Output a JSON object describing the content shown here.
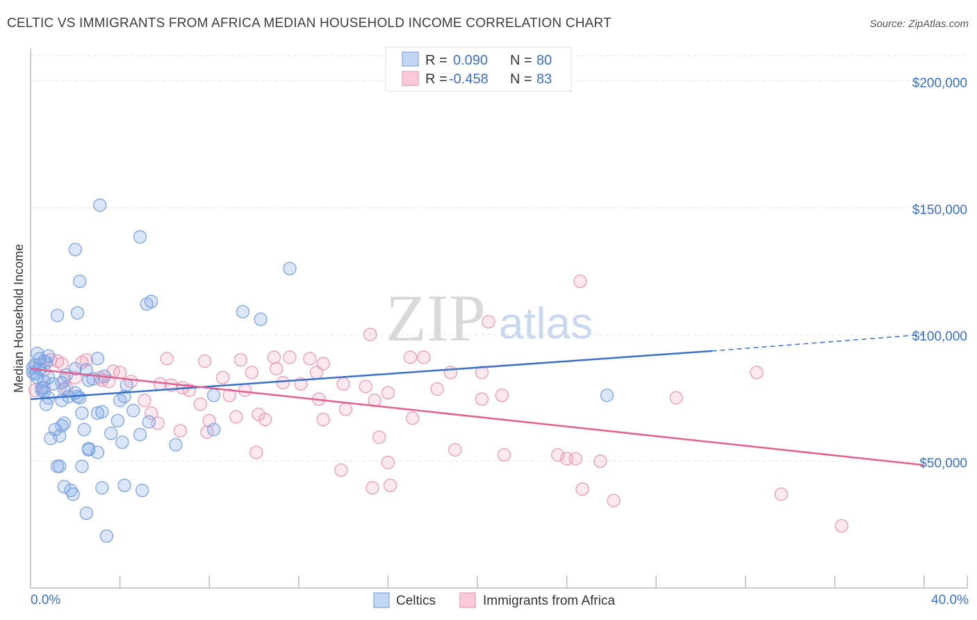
{
  "title": "CELTIC VS IMMIGRANTS FROM AFRICA MEDIAN HOUSEHOLD INCOME CORRELATION CHART",
  "source": "Source: ZipAtlas.com",
  "watermark": {
    "part1": "ZIP",
    "part2": "atlas"
  },
  "colors": {
    "blue": "#3a70c8",
    "blue_fill": "rgba(110,160,230,0.25)",
    "blue_stroke": "#7ba4e0",
    "pink": "#e0608f",
    "pink_fill": "rgba(240,150,180,0.22)",
    "pink_stroke": "#eb9ab7",
    "grid": "#e4e4e4"
  },
  "legend": {
    "rows": [
      {
        "r_label": "R =",
        "r_value": "0.090",
        "n_label": "N =",
        "n_value": "80"
      },
      {
        "r_label": "R =",
        "r_value": "-0.458",
        "n_label": "N =",
        "n_value": "83"
      }
    ]
  },
  "bottom_legend": [
    "Celtics",
    "Immigrants from Africa"
  ],
  "chart_data": {
    "type": "scatter",
    "title": "CELTIC VS IMMIGRANTS FROM AFRICA MEDIAN HOUSEHOLD INCOME CORRELATION CHART",
    "xlabel": "",
    "ylabel": "Median Household Income",
    "xlim": [
      0,
      40
    ],
    "ylim": [
      0,
      210000
    ],
    "x_tick_labels": [
      "0.0%",
      "40.0%"
    ],
    "y_ticks": [
      50000,
      100000,
      150000,
      200000
    ],
    "y_tick_labels": [
      "$50,000",
      "$100,000",
      "$150,000",
      "$200,000"
    ],
    "grid": true,
    "legend_position": "top-center",
    "series": [
      {
        "name": "Celtics",
        "r": 0.09,
        "n": 80,
        "trend": {
          "x0": 0.0,
          "y0": 74500,
          "x1": 30.5,
          "y1": 93500,
          "dashed_to_x": 40.0,
          "dashed_to_y": 100000
        },
        "points": [
          [
            3.1,
            151000
          ],
          [
            4.9,
            138500
          ],
          [
            2.0,
            133500
          ],
          [
            11.6,
            126000
          ],
          [
            2.2,
            121000
          ],
          [
            5.4,
            113000
          ],
          [
            5.2,
            112000
          ],
          [
            9.5,
            109000
          ],
          [
            2.1,
            108500
          ],
          [
            1.2,
            107500
          ],
          [
            10.3,
            106000
          ],
          [
            0.3,
            92500
          ],
          [
            0.8,
            91500
          ],
          [
            0.4,
            90500
          ],
          [
            3.0,
            90500
          ],
          [
            0.6,
            89500
          ],
          [
            0.7,
            89000
          ],
          [
            0.2,
            88000
          ],
          [
            0.1,
            87000
          ],
          [
            0.4,
            86500
          ],
          [
            2.5,
            86000
          ],
          [
            0.1,
            85000
          ],
          [
            0.2,
            84500
          ],
          [
            1.6,
            84000
          ],
          [
            0.8,
            83000
          ],
          [
            2.8,
            82500
          ],
          [
            2.6,
            82000
          ],
          [
            0.6,
            81500
          ],
          [
            1.4,
            81000
          ],
          [
            4.3,
            80000
          ],
          [
            0.5,
            79000
          ],
          [
            1.5,
            78500
          ],
          [
            0.5,
            78000
          ],
          [
            2.0,
            77000
          ],
          [
            8.2,
            76000
          ],
          [
            4.2,
            75500
          ],
          [
            25.8,
            76000
          ],
          [
            1.7,
            75500
          ],
          [
            2.1,
            75500
          ],
          [
            0.8,
            75000
          ],
          [
            2.2,
            75000
          ],
          [
            1.4,
            74000
          ],
          [
            4.0,
            74000
          ],
          [
            0.7,
            72500
          ],
          [
            4.6,
            70000
          ],
          [
            3.2,
            69500
          ],
          [
            2.3,
            69000
          ],
          [
            3.0,
            69000
          ],
          [
            3.9,
            66000
          ],
          [
            1.5,
            65000
          ],
          [
            5.3,
            65500
          ],
          [
            1.4,
            64000
          ],
          [
            1.1,
            62500
          ],
          [
            2.4,
            62500
          ],
          [
            8.2,
            62500
          ],
          [
            3.6,
            61000
          ],
          [
            4.9,
            60500
          ],
          [
            1.3,
            60000
          ],
          [
            0.9,
            59000
          ],
          [
            4.1,
            57500
          ],
          [
            6.5,
            56500
          ],
          [
            2.6,
            55000
          ],
          [
            3.0,
            53500
          ],
          [
            2.6,
            54500
          ],
          [
            1.2,
            48000
          ],
          [
            1.3,
            48000
          ],
          [
            2.3,
            48000
          ],
          [
            1.5,
            40000
          ],
          [
            3.2,
            39500
          ],
          [
            4.2,
            40500
          ],
          [
            1.8,
            38500
          ],
          [
            5.0,
            38500
          ],
          [
            1.9,
            37000
          ],
          [
            2.5,
            29500
          ],
          [
            3.4,
            20500
          ],
          [
            0.3,
            83000
          ],
          [
            0.6,
            77500
          ],
          [
            1.0,
            80500
          ],
          [
            2.0,
            86500
          ],
          [
            3.3,
            83500
          ]
        ]
      },
      {
        "name": "Immigrants from Africa",
        "r": -0.458,
        "n": 83,
        "trend": {
          "x0": 0.0,
          "y0": 86500,
          "x1": 40.0,
          "y1": 48500
        },
        "points": [
          [
            24.6,
            121000
          ],
          [
            20.5,
            105000
          ],
          [
            15.2,
            100000
          ],
          [
            6.1,
            90500
          ],
          [
            10.9,
            91000
          ],
          [
            11.6,
            91000
          ],
          [
            12.5,
            90500
          ],
          [
            17.0,
            91000
          ],
          [
            17.6,
            91000
          ],
          [
            7.8,
            89500
          ],
          [
            9.4,
            90000
          ],
          [
            13.1,
            88500
          ],
          [
            2.3,
            89000
          ],
          [
            2.5,
            90000
          ],
          [
            1.2,
            89500
          ],
          [
            0.9,
            90000
          ],
          [
            1.4,
            88500
          ],
          [
            0.4,
            88000
          ],
          [
            11.0,
            86500
          ],
          [
            0.6,
            86000
          ],
          [
            3.7,
            85500
          ],
          [
            4.0,
            85000
          ],
          [
            12.8,
            85000
          ],
          [
            18.8,
            85000
          ],
          [
            20.2,
            85000
          ],
          [
            32.5,
            85000
          ],
          [
            8.6,
            83000
          ],
          [
            2.0,
            83000
          ],
          [
            3.2,
            82000
          ],
          [
            3.5,
            81500
          ],
          [
            4.5,
            81500
          ],
          [
            12.1,
            80500
          ],
          [
            14.0,
            80500
          ],
          [
            5.8,
            80500
          ],
          [
            6.3,
            80000
          ],
          [
            6.8,
            79000
          ],
          [
            7.1,
            78000
          ],
          [
            0.6,
            79000
          ],
          [
            1.6,
            79000
          ],
          [
            9.6,
            78000
          ],
          [
            15.0,
            79500
          ],
          [
            18.2,
            78500
          ],
          [
            16.0,
            77000
          ],
          [
            8.9,
            76000
          ],
          [
            21.1,
            76000
          ],
          [
            20.2,
            74500
          ],
          [
            12.9,
            74500
          ],
          [
            28.9,
            75000
          ],
          [
            15.4,
            74000
          ],
          [
            5.1,
            74000
          ],
          [
            0.2,
            78000
          ],
          [
            7.6,
            72500
          ],
          [
            14.1,
            70500
          ],
          [
            5.4,
            69000
          ],
          [
            10.2,
            68500
          ],
          [
            9.2,
            67500
          ],
          [
            13.1,
            66500
          ],
          [
            10.5,
            66500
          ],
          [
            8.0,
            66000
          ],
          [
            17.1,
            67000
          ],
          [
            5.7,
            65000
          ],
          [
            6.7,
            62000
          ],
          [
            7.9,
            61500
          ],
          [
            15.6,
            59500
          ],
          [
            19.0,
            54500
          ],
          [
            10.1,
            53500
          ],
          [
            21.2,
            52500
          ],
          [
            23.6,
            52500
          ],
          [
            24.0,
            51000
          ],
          [
            24.4,
            51000
          ],
          [
            25.5,
            50000
          ],
          [
            16.0,
            49500
          ],
          [
            13.9,
            46500
          ],
          [
            16.1,
            40500
          ],
          [
            15.3,
            39500
          ],
          [
            24.7,
            39000
          ],
          [
            33.6,
            37000
          ],
          [
            26.1,
            34500
          ],
          [
            36.3,
            24500
          ],
          [
            11.3,
            81000
          ],
          [
            3.1,
            83000
          ],
          [
            9.9,
            85000
          ],
          [
            1.5,
            82000
          ]
        ]
      }
    ]
  }
}
